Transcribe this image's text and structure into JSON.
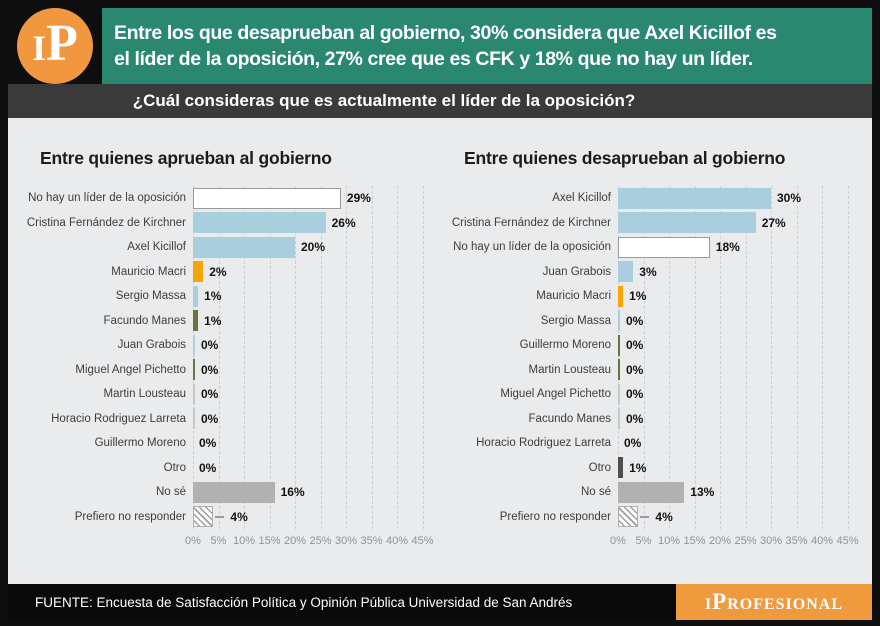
{
  "banner": {
    "logo_text": "iP",
    "headline": [
      "Entre los que desaprueban al gobierno, 30% considera que Axel Kicillof es",
      "el líder de la oposición, 27% cree que es CFK y 18% que no hay un líder."
    ]
  },
  "question": "¿Cuál consideras que es actualmente el líder de la oposición?",
  "colors": {
    "banner_green": "#2a8871",
    "logo_orange": "#f0973f",
    "question_bar": "#3a3a3a",
    "chart_background": "#e9ebed",
    "bar_blue": "#a9cedd",
    "bar_orange": "#f5a506",
    "bar_olive": "#67743e",
    "bar_gray": "#b1b1b1",
    "bar_darkgray": "#4e4e4e",
    "bar_white": "#ffffff",
    "footer_orange": "#ef9a3d"
  },
  "chart_data": [
    {
      "type": "bar",
      "orientation": "horizontal",
      "title": "Entre quienes aprueban al gobierno",
      "categories": [
        "No hay un líder de la oposición",
        "Cristina Fernández de Kirchner",
        "Axel Kicillof",
        "Mauricio Macri",
        "Sergio Massa",
        "Facundo Manes",
        "Juan Grabois",
        "Miguel Angel Pichetto",
        "Martin Lousteau",
        "Horacio Rodriguez Larreta",
        "Guillermo Moreno",
        "Otro",
        "No sé",
        "Prefiero no responder"
      ],
      "values": [
        29,
        26,
        20,
        2,
        1,
        1,
        0,
        0,
        0,
        0,
        0,
        0,
        16,
        4
      ],
      "value_labels": [
        "29%",
        "26%",
        "20%",
        "2%",
        "1%",
        "1%",
        "0%",
        "0%",
        "0%",
        "0%",
        "0%",
        "0%",
        "16%",
        "4%"
      ],
      "bar_styles": [
        "white",
        "blue",
        "blue",
        "orange",
        "blue",
        "olive",
        "sliver-blue",
        "sliver-olive",
        "sliver-gray",
        "sliver-gray",
        "none",
        "none",
        "gray",
        "hatched"
      ],
      "x_ticks": [
        "0%",
        "5%",
        "10%",
        "15%",
        "20%",
        "25%",
        "30%",
        "35%",
        "40%",
        "45%"
      ],
      "xlim": [
        0,
        50
      ],
      "grid": "dashed-vertical"
    },
    {
      "type": "bar",
      "orientation": "horizontal",
      "title": "Entre quienes desaprueban al gobierno",
      "categories": [
        "Axel Kicillof",
        "Cristina Fernández de Kirchner",
        "No hay un líder de la oposición",
        "Juan Grabois",
        "Mauricio Macri",
        "Sergio Massa",
        "Guillermo Moreno",
        "Martin Lousteau",
        "Miguel Angel Pichetto",
        "Facundo Manes",
        "Horacio Rodriguez Larreta",
        "Otro",
        "No sé",
        "Prefiero no responder"
      ],
      "values": [
        30,
        27,
        18,
        3,
        1,
        0,
        0,
        0,
        0,
        0,
        0,
        1,
        13,
        4
      ],
      "value_labels": [
        "30%",
        "27%",
        "18%",
        "3%",
        "1%",
        "0%",
        "0%",
        "0%",
        "0%",
        "0%",
        "0%",
        "1%",
        "13%",
        "4%"
      ],
      "bar_styles": [
        "blue",
        "blue",
        "white",
        "blue",
        "orange",
        "sliver-blue",
        "sliver-olive",
        "sliver-olive",
        "sliver-gray",
        "sliver-gray",
        "none",
        "darkgray",
        "gray",
        "hatched"
      ],
      "x_ticks": [
        "0%",
        "5%",
        "10%",
        "15%",
        "20%",
        "25%",
        "30%",
        "35%",
        "40%",
        "45%"
      ],
      "xlim": [
        0,
        50
      ],
      "grid": "dashed-vertical"
    }
  ],
  "footer": {
    "source": "FUENTE: Encuesta de Satisfacción Política y Opinión Pública Universidad de San Andrés",
    "brand": "iProfesional"
  }
}
